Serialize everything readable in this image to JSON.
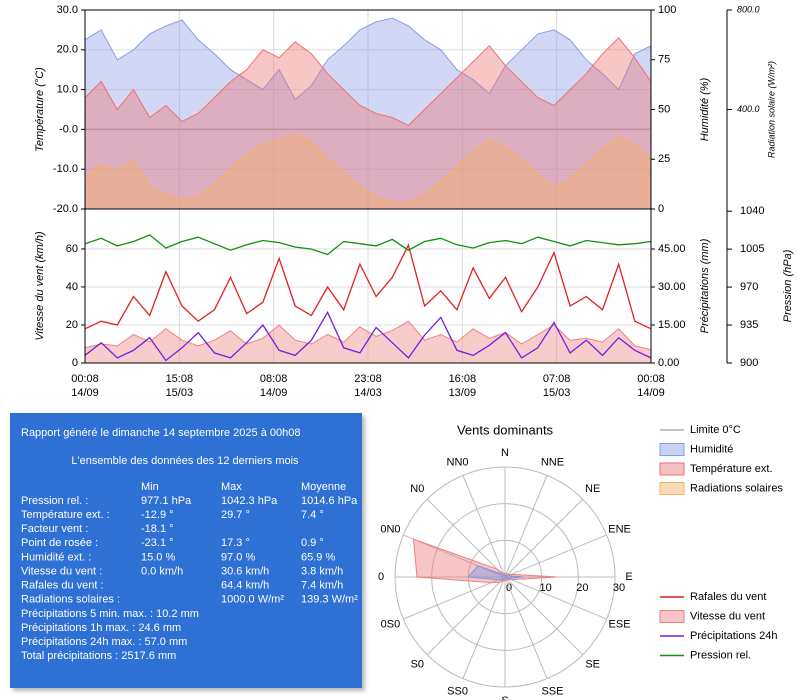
{
  "chart_data": [
    {
      "type": "line",
      "ylabel": "Température (°C)",
      "y2label": "Humidité (%)",
      "y3label": "Radiation solaire (W/m²)",
      "ylim": [
        -20,
        30
      ],
      "yticks": [
        {
          "value": 30,
          "label": "30.0"
        },
        {
          "value": 20,
          "label": "20.0"
        },
        {
          "value": 10,
          "label": "10.0"
        },
        {
          "value": 0,
          "label": "-0.0"
        },
        {
          "value": -10,
          "label": "-10.0"
        },
        {
          "value": -20,
          "label": "-20.0"
        }
      ],
      "y2lim": [
        0,
        100
      ],
      "y2ticks": [
        0,
        25,
        50,
        75,
        100
      ],
      "y3lim": [
        0,
        800
      ],
      "y3ticks": [
        {
          "value": 400,
          "label": "400.0"
        },
        {
          "value": 800,
          "label": "800.0"
        }
      ],
      "grid": true,
      "reference_line": {
        "name": "Limite 0°C",
        "value": 0,
        "color": "#b0b0b0"
      },
      "series": [
        {
          "name": "Humidité",
          "mark": "area",
          "axis": "y2",
          "color": "#8c9ce6",
          "values": [
            85,
            90,
            75,
            80,
            88,
            92,
            95,
            85,
            78,
            70,
            65,
            60,
            70,
            55,
            62,
            75,
            82,
            90,
            94,
            96,
            92,
            85,
            80,
            70,
            65,
            58,
            72,
            80,
            88,
            90,
            85,
            75,
            68,
            60,
            78,
            82
          ]
        },
        {
          "name": "Température ext.",
          "mark": "area",
          "axis": "y",
          "color": "#f07070",
          "values": [
            8,
            12,
            5,
            10,
            3,
            6,
            2,
            4,
            8,
            12,
            15,
            20,
            18,
            22,
            19,
            14,
            10,
            6,
            4,
            3,
            1,
            5,
            9,
            13,
            17,
            21,
            16,
            12,
            8,
            6,
            10,
            14,
            19,
            23,
            18,
            12
          ]
        },
        {
          "name": "Radiations solaires",
          "mark": "area",
          "axis": "y3",
          "color": "#f5b060",
          "values": [
            120,
            180,
            150,
            200,
            90,
            60,
            40,
            50,
            100,
            160,
            220,
            260,
            280,
            300,
            270,
            200,
            150,
            90,
            50,
            30,
            25,
            60,
            110,
            170,
            230,
            280,
            250,
            200,
            140,
            90,
            120,
            180,
            240,
            290,
            260,
            200
          ]
        }
      ]
    },
    {
      "type": "line",
      "ylabel": "Vitesse du vent (km/h)",
      "y2label": "Précipitations (mm)",
      "y3label": "Pression (hPa)",
      "ylim": [
        0,
        81
      ],
      "yticks": [
        0,
        20,
        40,
        60
      ],
      "y2lim": [
        0,
        60.8
      ],
      "y2ticks": [
        {
          "value": 0,
          "label": "0.00"
        },
        {
          "value": 15,
          "label": "15.00"
        },
        {
          "value": 30,
          "label": "30.00"
        },
        {
          "value": 45,
          "label": "45.00"
        }
      ],
      "y3lim": [
        900,
        1042
      ],
      "y3ticks": [
        900,
        935,
        970,
        1005,
        1040
      ],
      "grid": true,
      "xticks": [
        {
          "time": "00:08",
          "date": "14/09"
        },
        {
          "time": "15:08",
          "date": "15/03"
        },
        {
          "time": "08:08",
          "date": "14/09"
        },
        {
          "time": "23:08",
          "date": "14/03"
        },
        {
          "time": "16:08",
          "date": "13/09"
        },
        {
          "time": "07:08",
          "date": "15/03"
        },
        {
          "time": "00:08",
          "date": "14/09"
        }
      ],
      "series": [
        {
          "name": "Rafales du vent",
          "mark": "line",
          "axis": "y",
          "color": "#e02020",
          "values": [
            18,
            22,
            20,
            35,
            25,
            48,
            30,
            22,
            28,
            45,
            26,
            32,
            55,
            30,
            25,
            40,
            28,
            52,
            35,
            45,
            62,
            30,
            38,
            28,
            50,
            34,
            45,
            27,
            40,
            58,
            30,
            35,
            28,
            52,
            22,
            18
          ]
        },
        {
          "name": "Vitesse du vent",
          "mark": "area",
          "axis": "y",
          "color": "#f08080",
          "values": [
            8,
            10,
            9,
            15,
            11,
            18,
            12,
            9,
            12,
            17,
            10,
            13,
            20,
            12,
            10,
            15,
            11,
            19,
            14,
            17,
            22,
            12,
            15,
            11,
            18,
            13,
            16,
            10,
            15,
            20,
            12,
            13,
            11,
            18,
            9,
            7
          ]
        },
        {
          "name": "Précipitations 24h",
          "mark": "line",
          "axis": "y2",
          "color": "#7020e0",
          "values": [
            3,
            8,
            2,
            5,
            10,
            1,
            6,
            12,
            4,
            2,
            8,
            15,
            5,
            3,
            9,
            20,
            6,
            4,
            14,
            8,
            2,
            11,
            18,
            5,
            3,
            7,
            12,
            2,
            6,
            16,
            4,
            9,
            3,
            10,
            5,
            2
          ]
        },
        {
          "name": "Pression rel.",
          "mark": "line",
          "axis": "y3",
          "color": "#109010",
          "values": [
            1010,
            1015,
            1008,
            1012,
            1018,
            1006,
            1012,
            1016,
            1010,
            1004,
            1009,
            1013,
            1011,
            1007,
            1005,
            1000,
            1012,
            1010,
            1008,
            1014,
            1004,
            1012,
            1015,
            1009,
            1006,
            1011,
            1013,
            1010,
            1016,
            1012,
            1008,
            1013,
            1011,
            1009,
            1010,
            1012
          ]
        }
      ]
    },
    {
      "type": "radar",
      "title": "Vents dominants",
      "categories": [
        "N",
        "NNE",
        "NE",
        "ENE",
        "E",
        "ESE",
        "SE",
        "SSE",
        "S",
        "SS0",
        "S0",
        "0S0",
        "0",
        "0N0",
        "N0",
        "NN0"
      ],
      "rlim": [
        0,
        30
      ],
      "rticks": [
        0,
        10,
        20,
        30
      ],
      "series": [
        {
          "color": "#f08080",
          "values": [
            1,
            1,
            1,
            2,
            14,
            2,
            1,
            1,
            1,
            1,
            2,
            4,
            24,
            27,
            3,
            1
          ]
        },
        {
          "color": "#7f95e6",
          "values": [
            0.5,
            0.5,
            0.5,
            1,
            5,
            1,
            0.5,
            0.5,
            0.5,
            0.5,
            1,
            2,
            10,
            8,
            1,
            0.5
          ]
        }
      ]
    }
  ],
  "report": {
    "title": "Rapport généré le dimanche 14 septembre 2025 à 00h08",
    "subtitle": "L'ensemble des données des 12 derniers mois",
    "columns": [
      "Min",
      "Max",
      "Moyenne"
    ],
    "rows": [
      [
        "Pression rel. :",
        "977.1 hPa",
        "1042.3 hPa",
        "1014.6 hPa"
      ],
      [
        "Température ext. :",
        "-12.9 °",
        "29.7 °",
        "7.4 °"
      ],
      [
        "Facteur vent :",
        "-18.1 °",
        null,
        null
      ],
      [
        "Point de rosée :",
        "-23.1 °",
        "17.3 °",
        "0.9 °"
      ],
      [
        "Humidité ext. :",
        "15.0 %",
        "97.0 %",
        "65.9 %"
      ],
      [
        "Vitesse du vent :",
        "0.0 km/h",
        "30.6 km/h",
        "3.8 km/h"
      ],
      [
        "Rafales du vent :",
        null,
        "64.4 km/h",
        "7.4 km/h"
      ],
      [
        "Radiations solaires :",
        null,
        "1000.0 W/m²",
        "139.3 W/m²"
      ]
    ],
    "totals": [
      "Précipitations 5 min. max. : 10.2 mm",
      "Précipitations 1h max. : 24.6 mm",
      "Précipitations 24h max. : 57.0 mm",
      "Total précipitations : 2517.6 mm"
    ]
  }
}
